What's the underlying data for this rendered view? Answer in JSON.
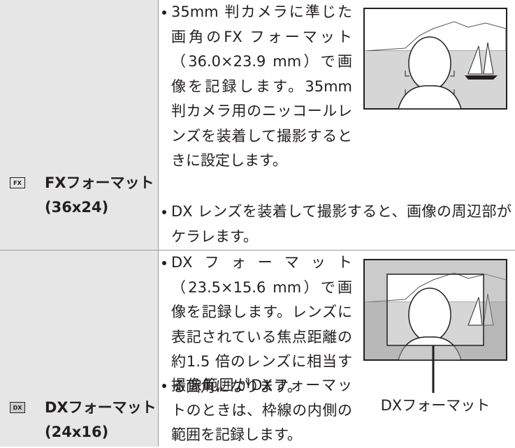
{
  "rows": [
    {
      "icon": "FX",
      "label": "FXフォーマット",
      "sublabel": "(36x24)",
      "bullets": [
        "35mm 判カメラに準じた画角のFX フォーマット（36.0×23.9 mm）で画像を記録します。35mm 判カメラ用のニッコールレンズを装着して撮影するときに設定します。",
        "DX レンズを装着して撮影すると、画像の周辺部がケラレます。"
      ]
    },
    {
      "icon": "DX",
      "label": "DXフォーマット",
      "sublabel": "(24x16)",
      "bullets": [
        "DXフォーマット（23.5×15.6 mm）で画像を記録します。レンズに表記されている焦点距離の約1.5 倍のレンズに相当する画角になります。",
        "撮像範囲がDXフォーマットのときは、枠線の内側の範囲を記録します。"
      ],
      "caption": "DXフォーマット"
    }
  ]
}
